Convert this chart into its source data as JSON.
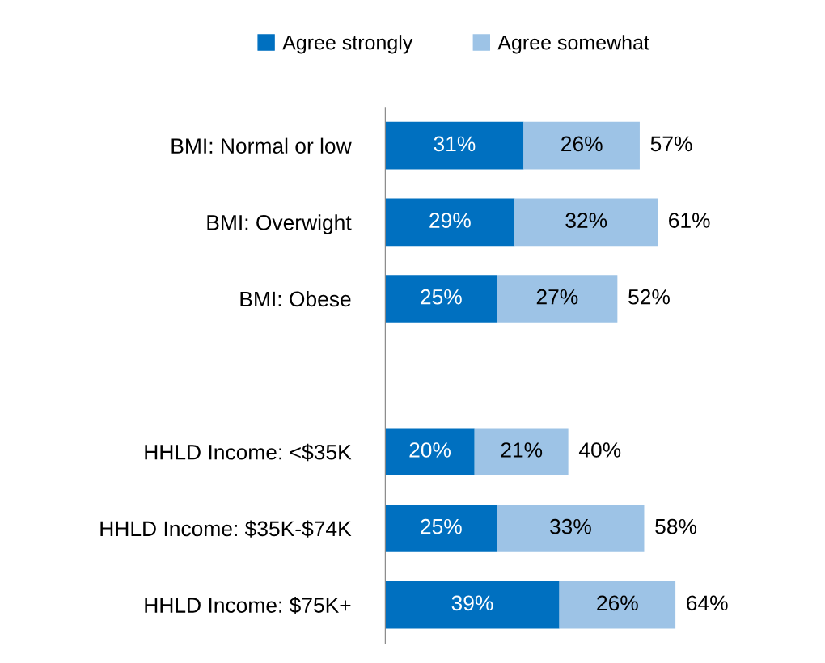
{
  "chart_data": {
    "type": "bar",
    "orientation": "horizontal",
    "stacked": true,
    "tick_labels": "y",
    "grid": false,
    "legend": "top",
    "categories": [
      "BMI: Normal or low",
      "BMI: Overwight",
      "BMI: Obese",
      null,
      "HHLD Income: <$35K",
      "HHLD Income: $35K-$74K",
      "HHLD Income: $75K+"
    ],
    "series": [
      {
        "name": "Agree strongly",
        "color": "#0070c0",
        "values": [
          31,
          29,
          25,
          null,
          20,
          25,
          39
        ],
        "value_labels": [
          "31%",
          "29%",
          "25%",
          null,
          "20%",
          "25%",
          "39%"
        ]
      },
      {
        "name": "Agree somewhat",
        "color": "#9dc3e6",
        "values": [
          26,
          32,
          27,
          null,
          21,
          33,
          26
        ],
        "value_labels": [
          "26%",
          "32%",
          "27%",
          null,
          "21%",
          "33%",
          "26%"
        ]
      }
    ],
    "totals": [
      "57%",
      "61%",
      "52%",
      null,
      "40%",
      "58%",
      "64%"
    ]
  }
}
